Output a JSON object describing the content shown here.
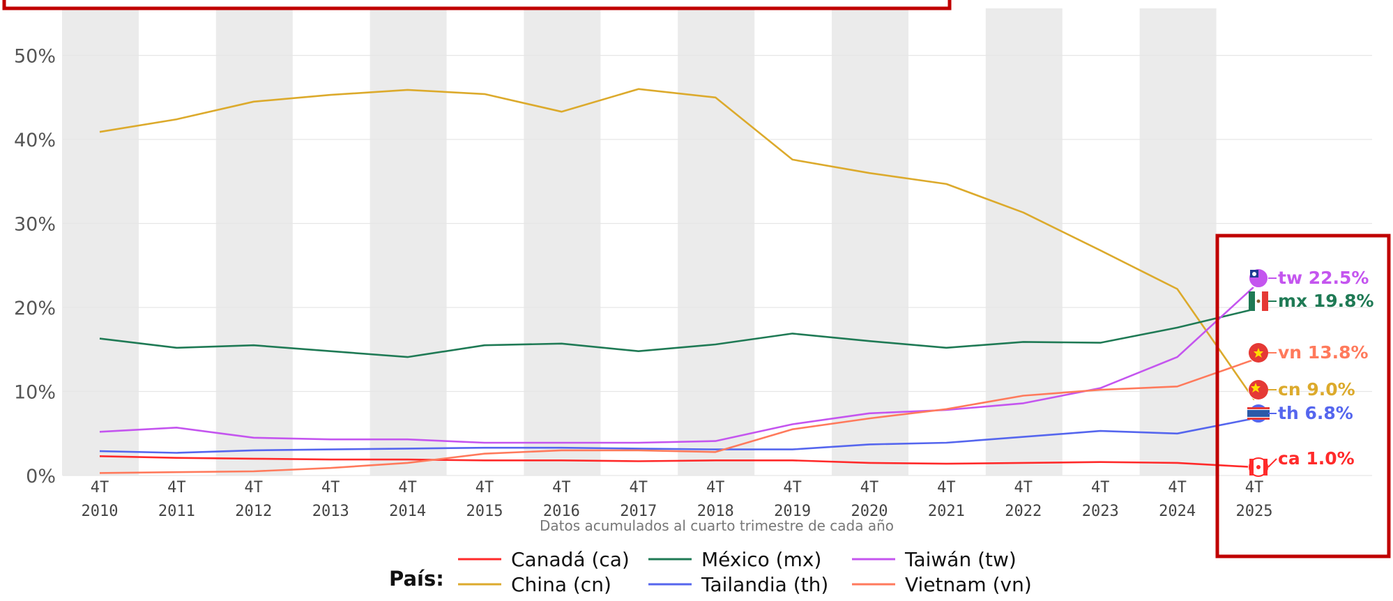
{
  "chart_data": {
    "type": "line",
    "title": "",
    "xlabel": "",
    "ylabel": "",
    "caption": "Datos acumulados al cuarto trimestre de cada año",
    "x": [
      "4T 2010",
      "4T 2011",
      "4T 2012",
      "4T 2013",
      "4T 2014",
      "4T 2015",
      "4T 2016",
      "4T 2017",
      "4T 2018",
      "4T 2019",
      "4T 2020",
      "4T 2021",
      "4T 2022",
      "4T 2023",
      "4T 2024",
      "4T 2025"
    ],
    "x_ticks": [
      {
        "top": "4T",
        "bottom": "2010"
      },
      {
        "top": "4T",
        "bottom": "2011"
      },
      {
        "top": "4T",
        "bottom": "2012"
      },
      {
        "top": "4T",
        "bottom": "2013"
      },
      {
        "top": "4T",
        "bottom": "2014"
      },
      {
        "top": "4T",
        "bottom": "2015"
      },
      {
        "top": "4T",
        "bottom": "2016"
      },
      {
        "top": "4T",
        "bottom": "2017"
      },
      {
        "top": "4T",
        "bottom": "2018"
      },
      {
        "top": "4T",
        "bottom": "2019"
      },
      {
        "top": "4T",
        "bottom": "2020"
      },
      {
        "top": "4T",
        "bottom": "2021"
      },
      {
        "top": "4T",
        "bottom": "2022"
      },
      {
        "top": "4T",
        "bottom": "2023"
      },
      {
        "top": "4T",
        "bottom": "2024"
      },
      {
        "top": "4T",
        "bottom": "2025"
      }
    ],
    "y_ticks": [
      {
        "value": 0,
        "label": "0%"
      },
      {
        "value": 10,
        "label": "10%"
      },
      {
        "value": 20,
        "label": "20%"
      },
      {
        "value": 30,
        "label": "30%"
      },
      {
        "value": 40,
        "label": "40%"
      },
      {
        "value": 50,
        "label": "50%"
      }
    ],
    "ylim": [
      0,
      53
    ],
    "grid": true,
    "shaded_bands": [
      "4T 2010",
      "4T 2012",
      "4T 2014",
      "4T 2016",
      "4T 2018",
      "4T 2020",
      "4T 2022",
      "4T 2024"
    ],
    "legend": {
      "title": "País:",
      "placement": "bottom"
    },
    "series": [
      {
        "name": "Canadá (ca)",
        "code": "ca",
        "color": "#ff2a2a",
        "flag_icon": "canada-flag-icon",
        "end_label": "ca 1.0%",
        "values": [
          2.3,
          2.1,
          2.0,
          1.9,
          1.9,
          1.8,
          1.8,
          1.7,
          1.8,
          1.8,
          1.5,
          1.4,
          1.5,
          1.6,
          1.5,
          1.0
        ]
      },
      {
        "name": "China (cn)",
        "code": "cn",
        "color": "#dcaa2c",
        "flag_icon": "china-flag-icon",
        "end_label": "cn 9.0%",
        "values": [
          40.9,
          42.4,
          44.5,
          45.3,
          45.9,
          45.4,
          43.3,
          46.0,
          45.0,
          37.6,
          36.0,
          34.7,
          31.3,
          26.8,
          22.2,
          9.0
        ]
      },
      {
        "name": "México (mx)",
        "code": "mx",
        "color": "#1f7a55",
        "flag_icon": "mexico-flag-icon",
        "end_label": "mx 19.8%",
        "values": [
          16.3,
          15.2,
          15.5,
          14.8,
          14.1,
          15.5,
          15.7,
          14.8,
          15.6,
          16.9,
          16.0,
          15.2,
          15.9,
          15.8,
          17.6,
          19.8
        ]
      },
      {
        "name": "Tailandia (th)",
        "code": "th",
        "color": "#5566ee",
        "flag_icon": "thailand-flag-icon",
        "end_label": "th 6.8%",
        "values": [
          2.9,
          2.7,
          3.0,
          3.1,
          3.2,
          3.3,
          3.3,
          3.2,
          3.1,
          3.1,
          3.7,
          3.9,
          4.6,
          5.3,
          5.0,
          6.8
        ]
      },
      {
        "name": "Taiwán (tw)",
        "code": "tw",
        "color": "#c455ef",
        "flag_icon": "taiwan-flag-icon",
        "end_label": "tw 22.5%",
        "values": [
          5.2,
          5.7,
          4.5,
          4.3,
          4.3,
          3.9,
          3.9,
          3.9,
          4.1,
          6.1,
          7.4,
          7.8,
          8.6,
          10.4,
          14.1,
          22.5
        ]
      },
      {
        "name": "Vietnam (vn)",
        "code": "vn",
        "color": "#ff7a5c",
        "flag_icon": "vietnam-flag-icon",
        "end_label": "vn 13.8%",
        "values": [
          0.3,
          0.4,
          0.5,
          0.9,
          1.5,
          2.6,
          3.0,
          3.0,
          2.8,
          5.5,
          6.8,
          7.9,
          9.5,
          10.2,
          10.6,
          13.8
        ]
      }
    ]
  },
  "annotations": {
    "highlight_color": "#c00000"
  }
}
